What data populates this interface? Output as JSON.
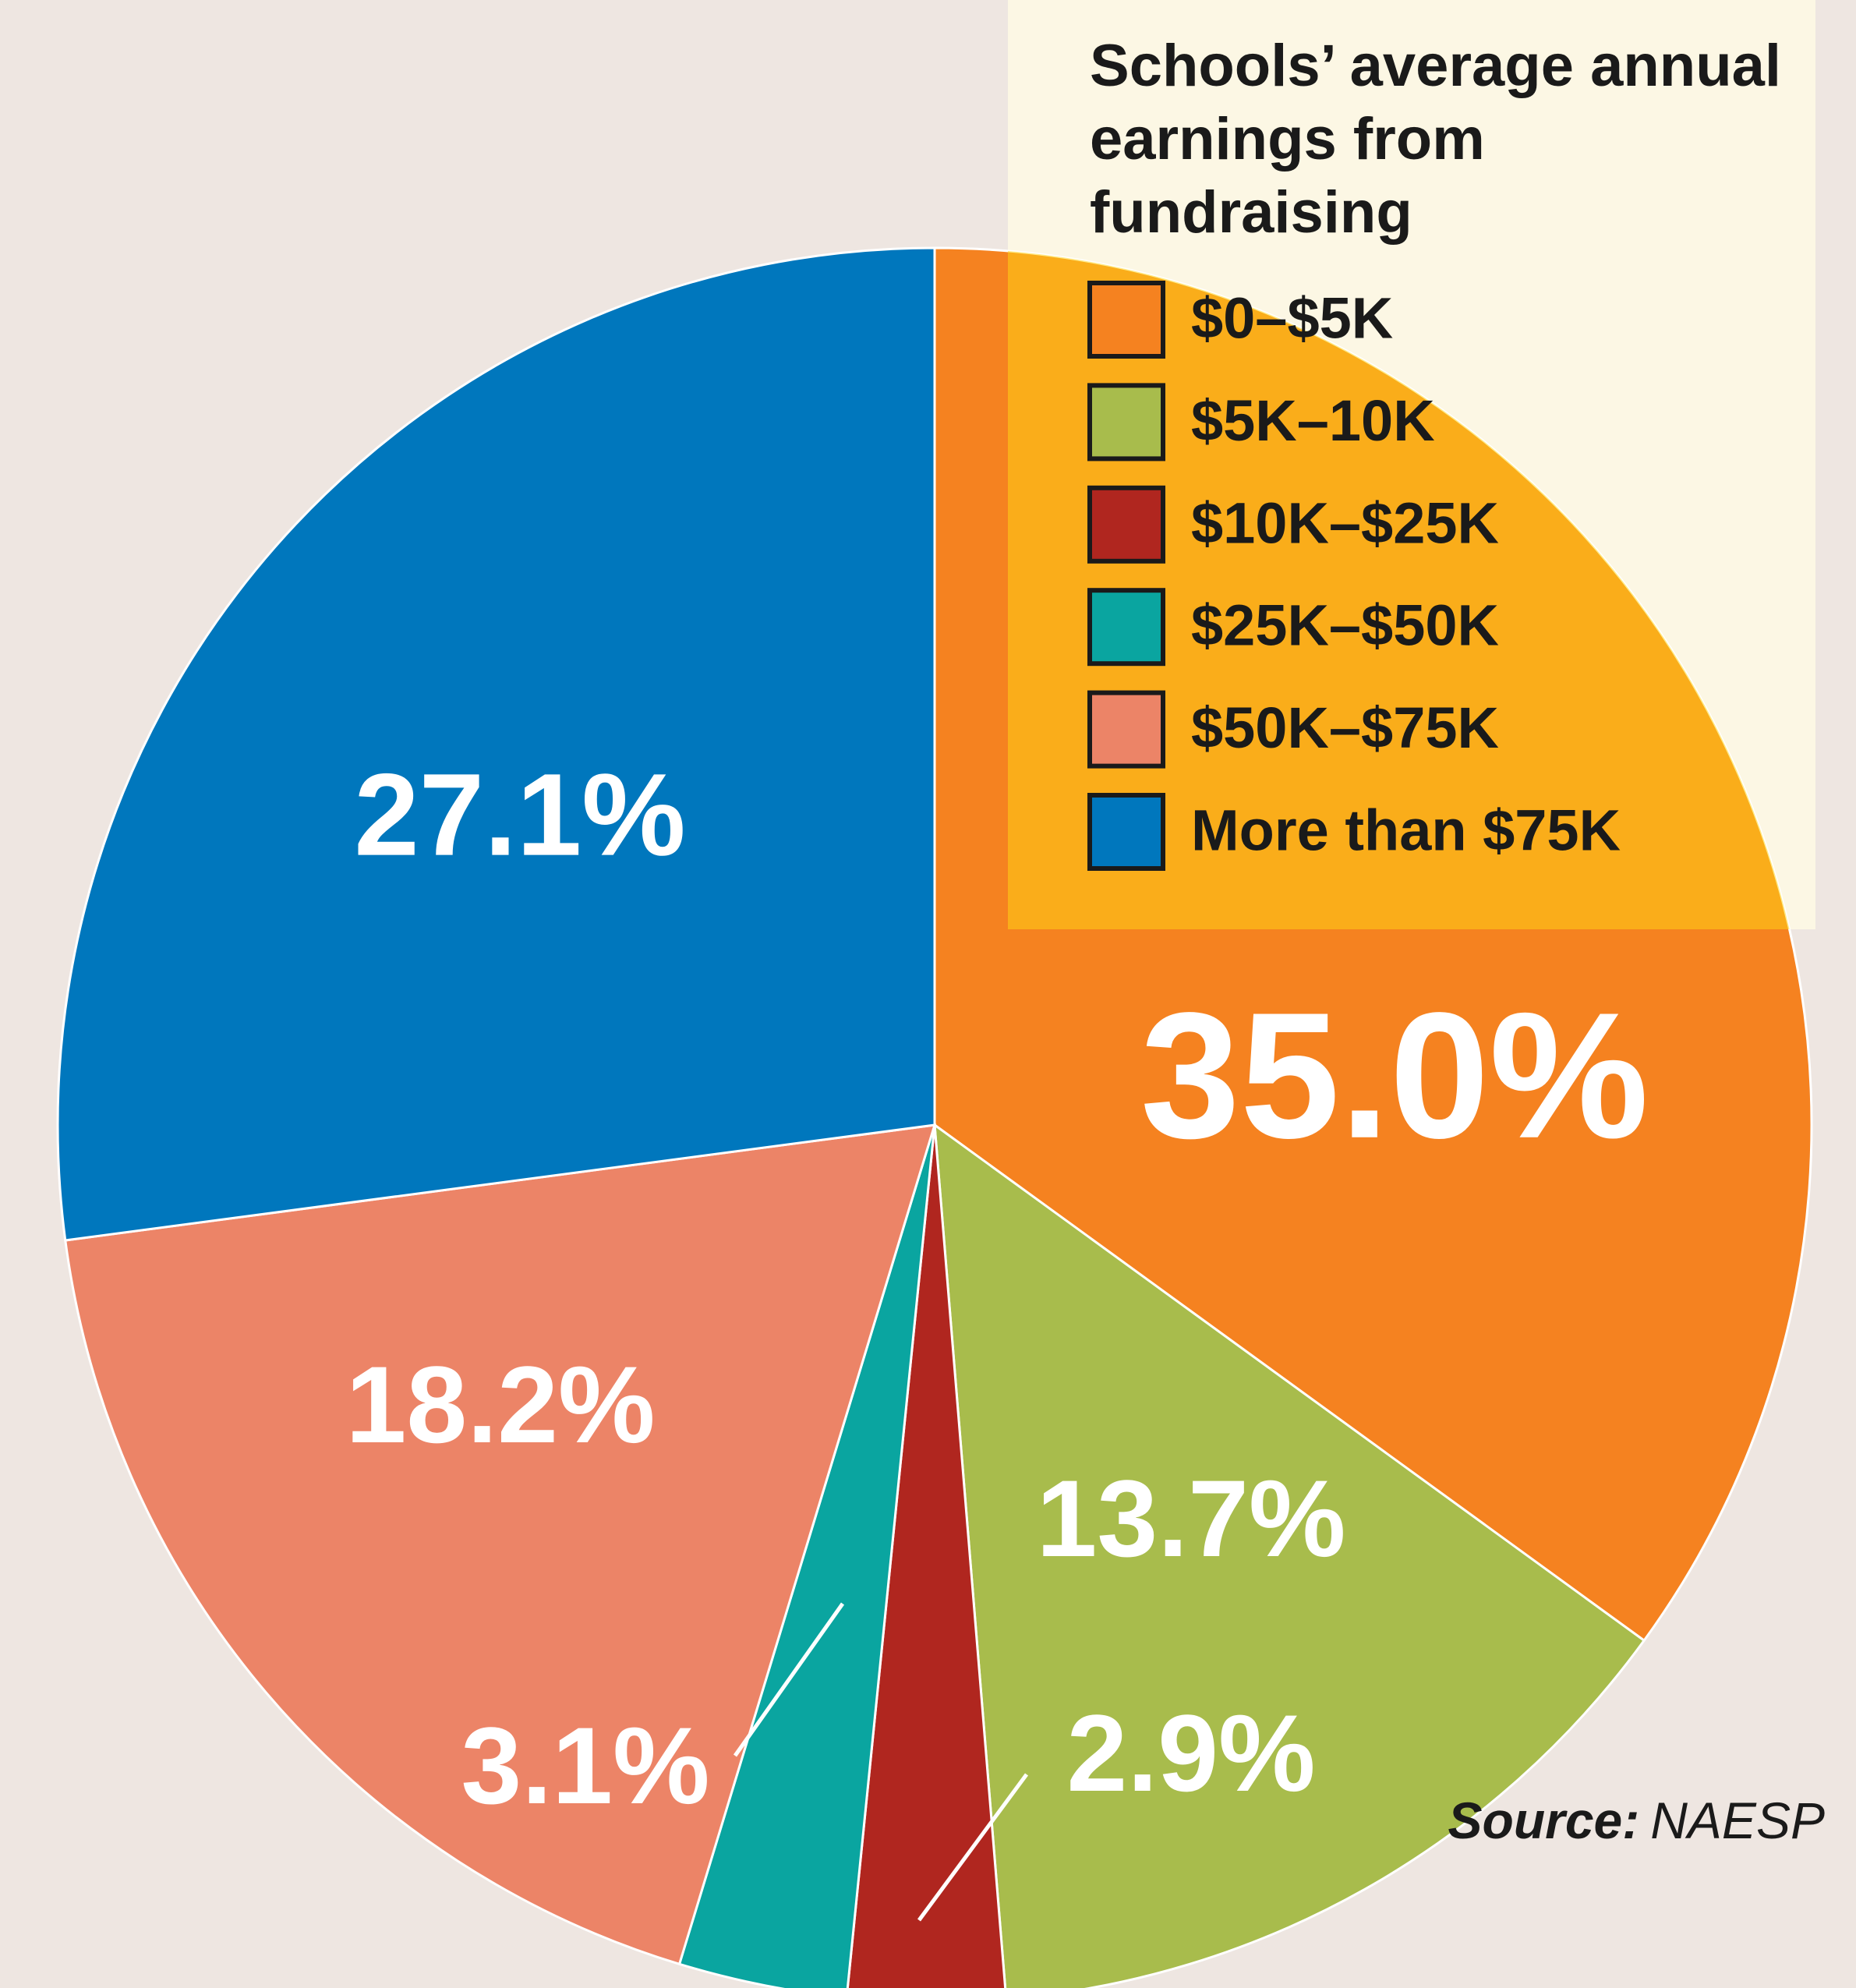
{
  "chart_data": {
    "type": "pie",
    "title": "Schools’ average annual earnings from fundraising",
    "categories": [
      "$0–$5K",
      "$5K–10K",
      "$10K–$25K",
      "$25K–$50K",
      "$50K–$75K",
      "More than $75K"
    ],
    "values": [
      35.0,
      13.7,
      2.9,
      3.1,
      18.2,
      27.1
    ],
    "value_labels": [
      "35.0%",
      "13.7%",
      "2.9%",
      "3.1%",
      "18.2%",
      "27.1%"
    ],
    "colors": [
      "#f58220",
      "#a8bc4c",
      "#b0261f",
      "#0aa5a0",
      "#ec8467",
      "#0077bd"
    ],
    "source_label": "Source:",
    "source": "NAESP"
  }
}
